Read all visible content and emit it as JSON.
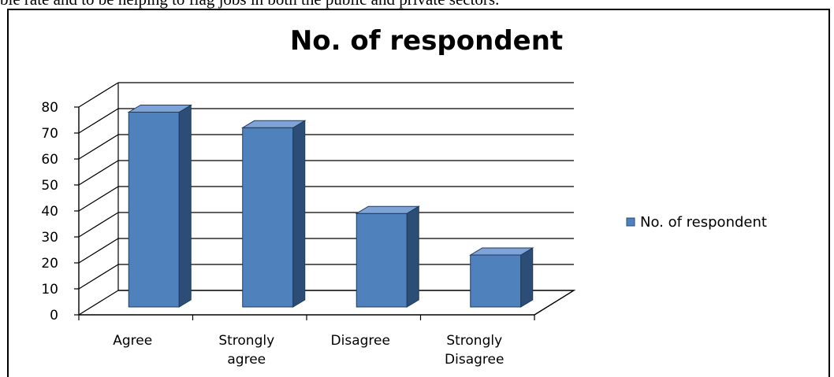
{
  "caption": "ble rate and to be helping to flag jobs in both the public and private sectors.",
  "chart_data": {
    "type": "bar",
    "title": "No. of respondent",
    "categories": [
      "Agree",
      "Strongly agree",
      "Disagree",
      "Strongly Disagree"
    ],
    "category_lines": [
      [
        "Agree"
      ],
      [
        "Strongly",
        "agree"
      ],
      [
        "Disagree"
      ],
      [
        "Strongly",
        "Disagree"
      ]
    ],
    "series": [
      {
        "name": "No. of respondent",
        "values": [
          75,
          69,
          36,
          20
        ]
      }
    ],
    "yticks": [
      "0",
      "10",
      "20",
      "30",
      "40",
      "50",
      "60",
      "70",
      "80"
    ],
    "ylim": [
      0,
      80
    ],
    "xlabel": "",
    "ylabel": "",
    "grid": true,
    "style": "3d-column",
    "legend": {
      "position": "right",
      "label": "No. of respondent"
    },
    "colors": {
      "bar_front": "#4F81BD",
      "bar_side": "#2C4D75",
      "bar_top": "#7FA3D6",
      "grid": "#000000"
    }
  }
}
